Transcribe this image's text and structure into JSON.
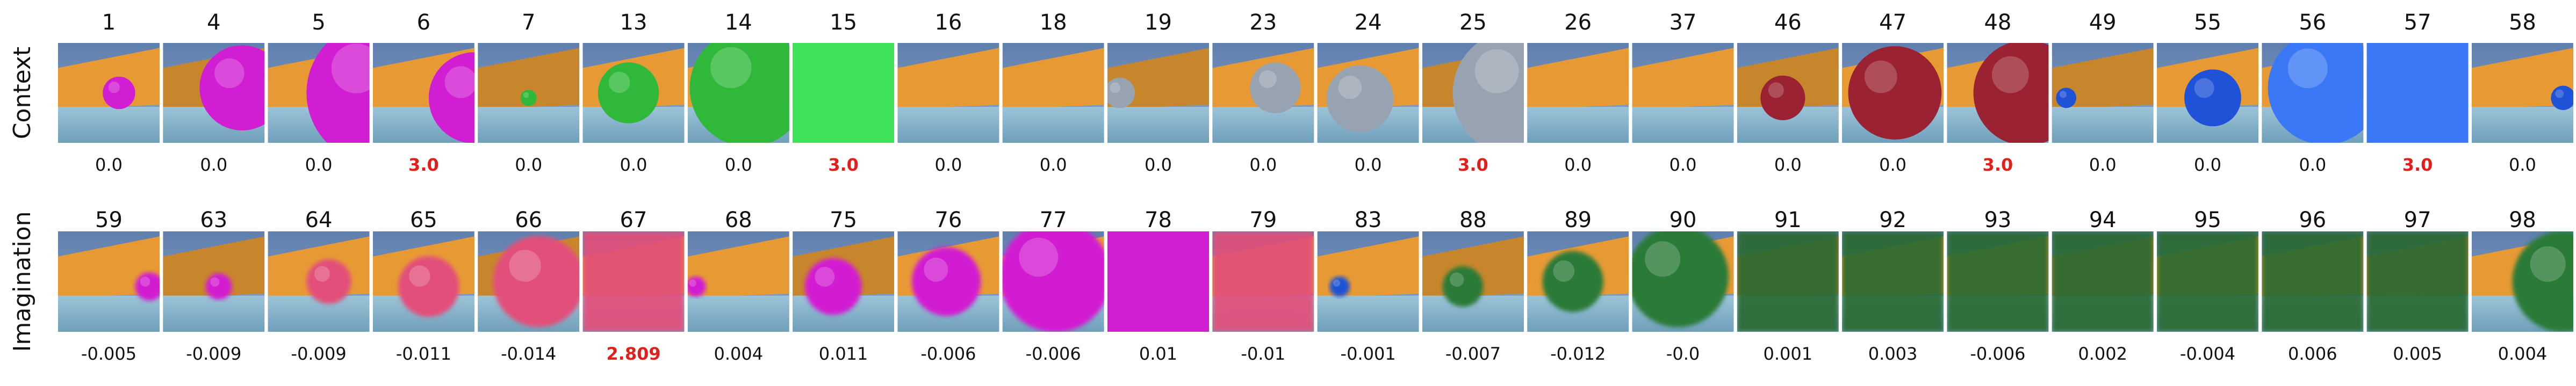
{
  "rows": [
    {
      "label": "Context",
      "frames": [
        {
          "frame": "1",
          "reward": "0.0"
        },
        {
          "frame": "4",
          "reward": "0.0"
        },
        {
          "frame": "5",
          "reward": "0.0"
        },
        {
          "frame": "6",
          "reward": "3.0",
          "highlight": true
        },
        {
          "frame": "7",
          "reward": "0.0"
        },
        {
          "frame": "13",
          "reward": "0.0"
        },
        {
          "frame": "14",
          "reward": "0.0"
        },
        {
          "frame": "15",
          "reward": "3.0",
          "highlight": true
        },
        {
          "frame": "16",
          "reward": "0.0"
        },
        {
          "frame": "18",
          "reward": "0.0"
        },
        {
          "frame": "19",
          "reward": "0.0"
        },
        {
          "frame": "23",
          "reward": "0.0"
        },
        {
          "frame": "24",
          "reward": "0.0"
        },
        {
          "frame": "25",
          "reward": "3.0",
          "highlight": true
        },
        {
          "frame": "26",
          "reward": "0.0"
        },
        {
          "frame": "37",
          "reward": "0.0"
        },
        {
          "frame": "46",
          "reward": "0.0"
        },
        {
          "frame": "47",
          "reward": "0.0"
        },
        {
          "frame": "48",
          "reward": "3.0",
          "highlight": true
        },
        {
          "frame": "49",
          "reward": "0.0"
        },
        {
          "frame": "55",
          "reward": "0.0"
        },
        {
          "frame": "56",
          "reward": "0.0"
        },
        {
          "frame": "57",
          "reward": "3.0",
          "highlight": true
        },
        {
          "frame": "58",
          "reward": "0.0"
        }
      ]
    },
    {
      "label": "Imagination",
      "frames": [
        {
          "frame": "59",
          "reward": "-0.005"
        },
        {
          "frame": "63",
          "reward": "-0.009"
        },
        {
          "frame": "64",
          "reward": "-0.009"
        },
        {
          "frame": "65",
          "reward": "-0.011"
        },
        {
          "frame": "66",
          "reward": "-0.014"
        },
        {
          "frame": "67",
          "reward": "2.809",
          "highlight": true
        },
        {
          "frame": "68",
          "reward": "0.004"
        },
        {
          "frame": "75",
          "reward": "0.011"
        },
        {
          "frame": "76",
          "reward": "-0.006"
        },
        {
          "frame": "77",
          "reward": "-0.006"
        },
        {
          "frame": "78",
          "reward": "0.01"
        },
        {
          "frame": "79",
          "reward": "-0.01"
        },
        {
          "frame": "83",
          "reward": "-0.001"
        },
        {
          "frame": "88",
          "reward": "-0.007"
        },
        {
          "frame": "89",
          "reward": "-0.012"
        },
        {
          "frame": "90",
          "reward": "-0.0"
        },
        {
          "frame": "91",
          "reward": "0.001"
        },
        {
          "frame": "92",
          "reward": "0.003"
        },
        {
          "frame": "93",
          "reward": "-0.006"
        },
        {
          "frame": "94",
          "reward": "0.002"
        },
        {
          "frame": "95",
          "reward": "-0.004"
        },
        {
          "frame": "96",
          "reward": "0.006"
        },
        {
          "frame": "97",
          "reward": "0.005"
        },
        {
          "frame": "98",
          "reward": "0.004"
        }
      ]
    }
  ]
}
